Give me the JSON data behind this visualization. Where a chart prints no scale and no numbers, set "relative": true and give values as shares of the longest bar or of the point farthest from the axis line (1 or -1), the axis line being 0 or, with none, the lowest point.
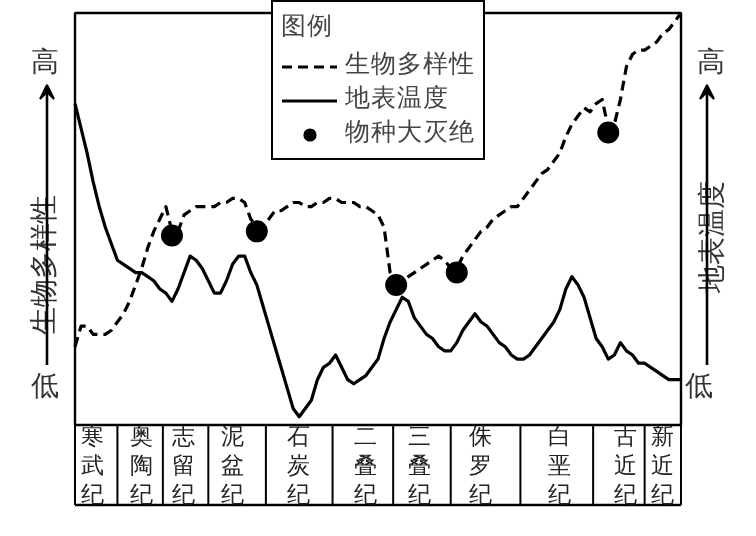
{
  "chart_data": {
    "type": "line",
    "relative": true,
    "ylabel": "生物多样性",
    "y2label": "地表温度",
    "legend_title": "图例",
    "legend": "top",
    "categories": [
      null,
      null,
      null,
      "寒武纪",
      null,
      null,
      null,
      null,
      null,
      null,
      null,
      "奥陶纪",
      null,
      null,
      null,
      null,
      null,
      null,
      "志留纪",
      null,
      null,
      null,
      null,
      null,
      null,
      null,
      "泥盆纪",
      null,
      null,
      null,
      null,
      null,
      null,
      null,
      null,
      null,
      null,
      "石炭纪",
      null,
      null,
      null,
      null,
      null,
      null,
      null,
      null,
      null,
      null,
      "二叠纪",
      null,
      null,
      null,
      null,
      null,
      null,
      null,
      null,
      "三叠纪",
      null,
      null,
      null,
      null,
      null,
      null,
      null,
      null,
      null,
      "侏罗纪",
      null,
      null,
      null,
      null,
      null,
      null,
      null,
      null,
      null,
      null,
      null,
      null,
      "白垩纪",
      null,
      null,
      null,
      null,
      null,
      null,
      null,
      null,
      null,
      null,
      "古近纪",
      null,
      null,
      null,
      null,
      null,
      "新近纪",
      null,
      null,
      null
    ],
    "annotations": [
      "高",
      "低",
      "高",
      "低"
    ],
    "series": [
      {
        "name": "生物多样性",
        "line_style": "dashed",
        "color": "#000000",
        "values": [
          0.19,
          0.24,
          0.24,
          0.22,
          0.22,
          0.22,
          0.23,
          0.25,
          0.27,
          0.3,
          0.34,
          0.38,
          0.43,
          0.47,
          0.5,
          0.53,
          0.47,
          0.47,
          0.51,
          0.52,
          0.53,
          0.53,
          0.53,
          0.53,
          0.54,
          0.54,
          0.55,
          0.55,
          0.54,
          0.5,
          0.48,
          0.48,
          0.5,
          0.52,
          0.52,
          0.53,
          0.54,
          0.54,
          0.53,
          0.53,
          0.54,
          0.54,
          0.55,
          0.55,
          0.54,
          0.54,
          0.54,
          0.53,
          0.53,
          0.52,
          0.51,
          0.48,
          0.37,
          0.35,
          0.35,
          0.36,
          0.37,
          0.38,
          0.39,
          0.4,
          0.41,
          0.4,
          0.38,
          0.38,
          0.41,
          0.43,
          0.45,
          0.47,
          0.48,
          0.5,
          0.51,
          0.52,
          0.53,
          0.53,
          0.55,
          0.57,
          0.59,
          0.61,
          0.62,
          0.64,
          0.66,
          0.7,
          0.73,
          0.75,
          0.77,
          0.76,
          0.78,
          0.79,
          0.72,
          0.73,
          0.79,
          0.87,
          0.9,
          0.91,
          0.91,
          0.92,
          0.93,
          0.95,
          0.96,
          0.98,
          1.0
        ]
      },
      {
        "name": "地表温度",
        "line_style": "solid",
        "color": "#000000",
        "values": [
          0.78,
          0.72,
          0.66,
          0.59,
          0.53,
          0.48,
          0.44,
          0.4,
          0.39,
          0.38,
          0.37,
          0.37,
          0.36,
          0.35,
          0.33,
          0.32,
          0.3,
          0.33,
          0.37,
          0.41,
          0.4,
          0.38,
          0.35,
          0.32,
          0.32,
          0.35,
          0.39,
          0.41,
          0.41,
          0.37,
          0.34,
          0.29,
          0.24,
          0.19,
          0.14,
          0.09,
          0.04,
          0.02,
          0.04,
          0.06,
          0.11,
          0.14,
          0.15,
          0.17,
          0.14,
          0.11,
          0.1,
          0.11,
          0.12,
          0.14,
          0.16,
          0.21,
          0.25,
          0.28,
          0.31,
          0.3,
          0.26,
          0.24,
          0.22,
          0.21,
          0.19,
          0.18,
          0.18,
          0.2,
          0.23,
          0.25,
          0.27,
          0.25,
          0.24,
          0.22,
          0.2,
          0.19,
          0.17,
          0.16,
          0.16,
          0.17,
          0.19,
          0.21,
          0.23,
          0.25,
          0.28,
          0.33,
          0.36,
          0.34,
          0.31,
          0.26,
          0.21,
          0.19,
          0.16,
          0.17,
          0.2,
          0.18,
          0.17,
          0.15,
          0.15,
          0.14,
          0.13,
          0.12,
          0.11,
          0.11,
          0.11
        ]
      },
      {
        "name": "物种大灭绝",
        "type": "scatter",
        "marker": "circle",
        "color": "#000000",
        "values": [
          null,
          null,
          null,
          null,
          null,
          null,
          null,
          null,
          null,
          null,
          null,
          null,
          null,
          null,
          null,
          null,
          0.46,
          null,
          null,
          null,
          null,
          null,
          null,
          null,
          null,
          null,
          null,
          null,
          null,
          null,
          0.47,
          null,
          null,
          null,
          null,
          null,
          null,
          null,
          null,
          null,
          null,
          null,
          null,
          null,
          null,
          null,
          null,
          null,
          null,
          null,
          null,
          null,
          null,
          0.34,
          null,
          null,
          null,
          null,
          null,
          null,
          null,
          null,
          null,
          0.37,
          null,
          null,
          null,
          null,
          null,
          null,
          null,
          null,
          null,
          null,
          null,
          null,
          null,
          null,
          null,
          null,
          null,
          null,
          null,
          null,
          null,
          null,
          null,
          null,
          0.71,
          null,
          null,
          null,
          null,
          null,
          null,
          null,
          null,
          null,
          null,
          null,
          null
        ]
      }
    ]
  }
}
